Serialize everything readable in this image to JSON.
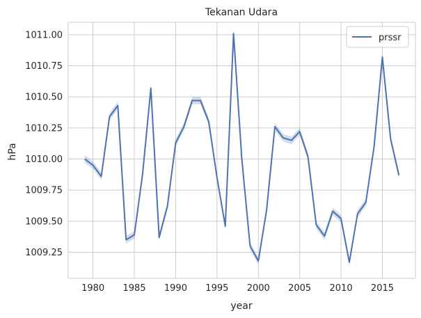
{
  "chart_data": {
    "type": "line",
    "title": "Tekanan Udara",
    "xlabel": "year",
    "ylabel": "hPa",
    "xlim": [
      1977,
      2019
    ],
    "ylim": [
      1009.04,
      1011.1
    ],
    "x_ticks": [
      1980,
      1985,
      1990,
      1995,
      2000,
      2005,
      2010,
      2015
    ],
    "y_ticks": [
      1009.25,
      1009.5,
      1009.75,
      1010.0,
      1010.25,
      1010.5,
      1010.75,
      1011.0
    ],
    "y_tick_labels": [
      "1009.25",
      "1009.50",
      "1009.75",
      "1010.00",
      "1010.25",
      "1010.50",
      "1010.75",
      "1011.00"
    ],
    "x_tick_labels": [
      "1980",
      "1985",
      "1990",
      "1995",
      "2000",
      "2005",
      "2010",
      "2015"
    ],
    "grid": true,
    "legend_position": "top-right",
    "series": [
      {
        "name": "prssr",
        "color": "#4c72b0",
        "x": [
          1979,
          1980,
          1981,
          1982,
          1983,
          1984,
          1985,
          1986,
          1987,
          1988,
          1989,
          1990,
          1991,
          1992,
          1993,
          1994,
          1995,
          1996,
          1997,
          1998,
          1999,
          2000,
          2001,
          2002,
          2003,
          2004,
          2005,
          2006,
          2007,
          2008,
          2009,
          2010,
          2011,
          2012,
          2013,
          2014,
          2015,
          2016,
          2017
        ],
        "y": [
          1010.0,
          1009.95,
          1009.86,
          1010.34,
          1010.43,
          1009.35,
          1009.39,
          1009.88,
          1010.57,
          1009.37,
          1009.62,
          1010.13,
          1010.26,
          1010.47,
          1010.47,
          1010.3,
          1009.85,
          1009.46,
          1011.01,
          1010.0,
          1009.3,
          1009.18,
          1009.59,
          1010.26,
          1010.17,
          1010.15,
          1010.22,
          1010.02,
          1009.47,
          1009.38,
          1009.58,
          1009.52,
          1009.17,
          1009.56,
          1009.65,
          1010.1,
          1010.82,
          1010.16,
          1009.87
        ],
        "band": 0.03
      }
    ]
  }
}
